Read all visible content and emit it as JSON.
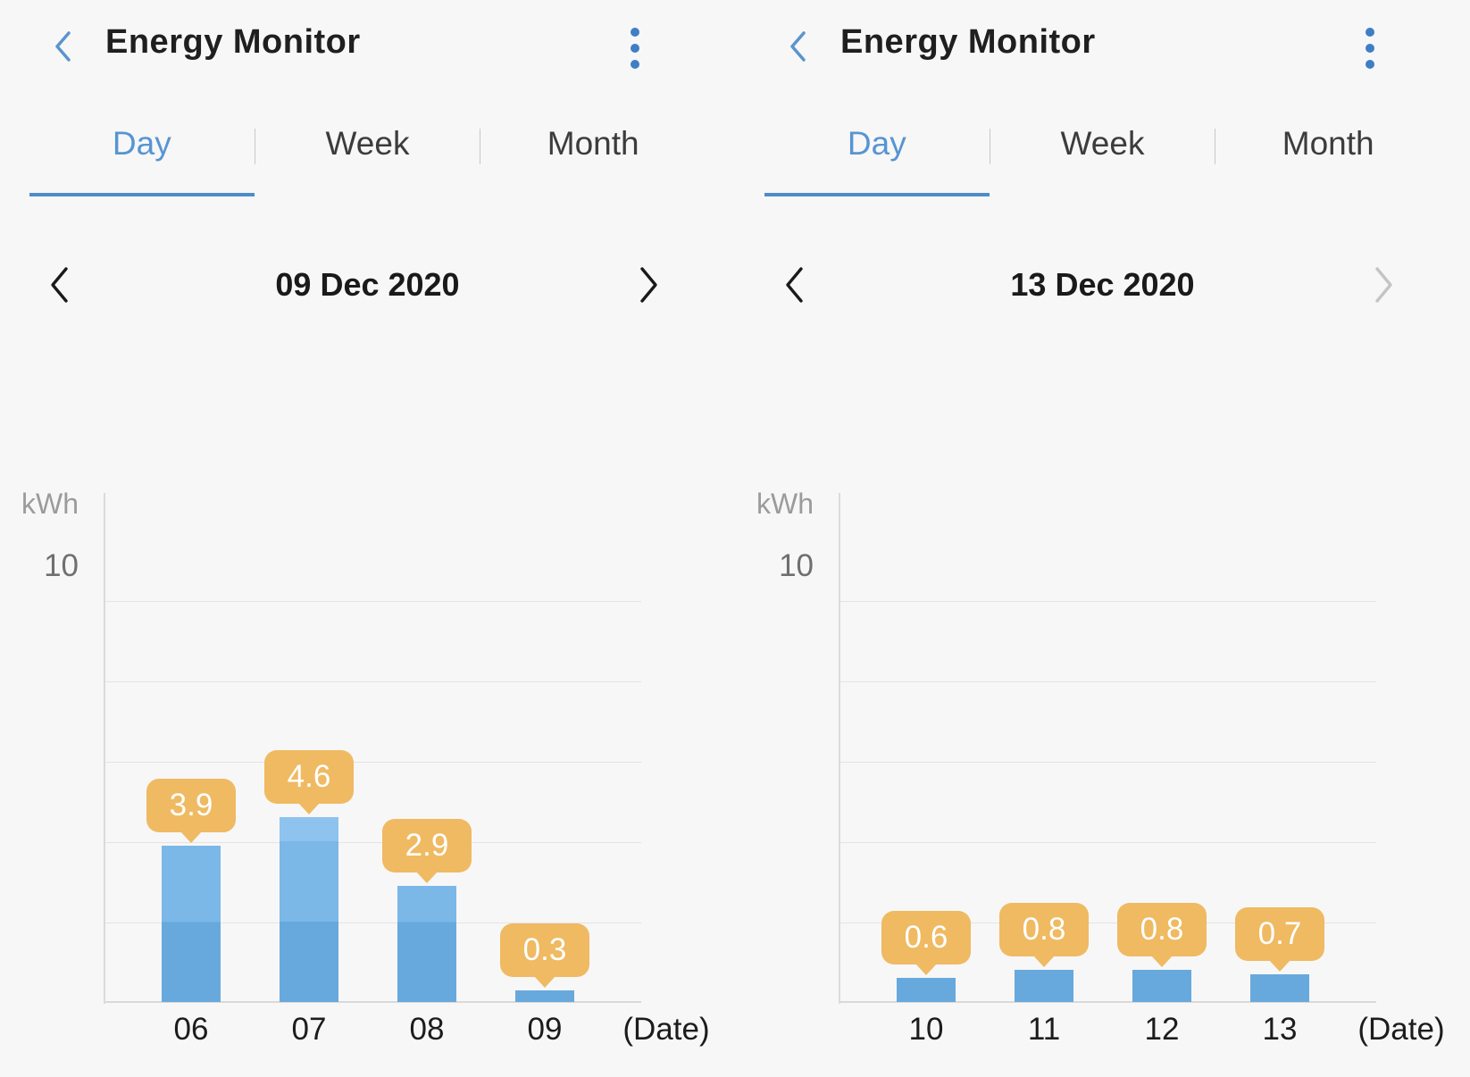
{
  "colors": {
    "background": "#F7F7F7",
    "accent_blue": "#4E8CC8",
    "tab_active_blue": "#5795D2",
    "header_icon_blue": "#3E7EC5",
    "back_chevron_blue": "#5B94CF",
    "bar_blue_dark": "#67A9DC",
    "bar_blue_mid": "#7BB7E7",
    "bar_blue_light": "#8DC3EE",
    "tooltip_orange": "#EFBA62",
    "tooltip_text": "#FFFFFF"
  },
  "panels": [
    {
      "title": "Energy Monitor",
      "back_icon": "chevron-left",
      "menu_icon": "kebab-vertical",
      "tabs": [
        {
          "label": "Day",
          "active": true
        },
        {
          "label": "Week",
          "active": false
        },
        {
          "label": "Month",
          "active": false
        }
      ],
      "date_nav": {
        "prev_icon": "chevron-left",
        "date": "09 Dec 2020",
        "next_icon": "chevron-right",
        "next_enabled": true
      },
      "chart_data": {
        "type": "bar",
        "ylabel": "kWh",
        "xlabel": "(Date)",
        "ylim": [
          0,
          10
        ],
        "ytick_labels": [
          "10"
        ],
        "gridline_step_kwh": 2,
        "grid": "on",
        "categories": [
          "06",
          "07",
          "08",
          "09"
        ],
        "values": [
          3.9,
          4.6,
          2.9,
          0.3
        ],
        "value_labels": [
          "3.9",
          "4.6",
          "2.9",
          "0.3"
        ]
      }
    },
    {
      "title": "Energy Monitor",
      "back_icon": "chevron-left",
      "menu_icon": "kebab-vertical",
      "tabs": [
        {
          "label": "Day",
          "active": true
        },
        {
          "label": "Week",
          "active": false
        },
        {
          "label": "Month",
          "active": false
        }
      ],
      "date_nav": {
        "prev_icon": "chevron-left",
        "date": "13 Dec 2020",
        "next_icon": "chevron-right",
        "next_enabled": false
      },
      "chart_data": {
        "type": "bar",
        "ylabel": "kWh",
        "xlabel": "(Date)",
        "ylim": [
          0,
          10
        ],
        "ytick_labels": [
          "10"
        ],
        "gridline_step_kwh": 2,
        "grid": "on",
        "categories": [
          "10",
          "11",
          "12",
          "13"
        ],
        "values": [
          0.6,
          0.8,
          0.8,
          0.7
        ],
        "value_labels": [
          "0.6",
          "0.8",
          "0.8",
          "0.7"
        ]
      }
    }
  ]
}
